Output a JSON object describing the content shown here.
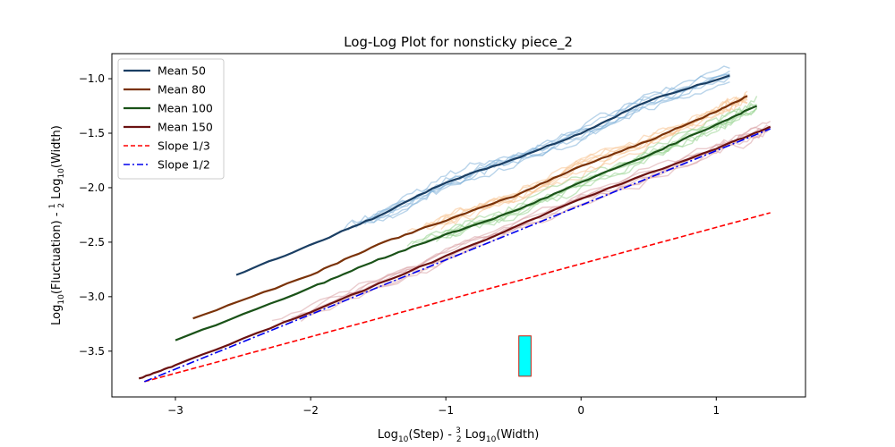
{
  "chart_data": {
    "type": "line",
    "title": "Log-Log Plot for nonsticky piece_2",
    "xlabel": {
      "prefix": "Log",
      "sub": "10",
      "mid": "(Step) - ",
      "frac_num": "3",
      "frac_den": "2",
      "suffix_prefix": " Log",
      "suffix_sub": "10",
      "suffix": "(Width)"
    },
    "ylabel": {
      "prefix": "Log",
      "sub": "10",
      "mid": "(Fluctuation) - ",
      "frac_num": "1",
      "frac_den": "2",
      "suffix_prefix": " Log",
      "suffix_sub": "10",
      "suffix": "(Width)"
    },
    "xlim": [
      -3.47,
      1.66
    ],
    "ylim": [
      -3.92,
      -0.77
    ],
    "xticks": [
      -3,
      -2,
      -1,
      0,
      1
    ],
    "xtick_labels": [
      "−3",
      "−2",
      "−1",
      "0",
      "1"
    ],
    "yticks": [
      -3.5,
      -3.0,
      -2.5,
      -2.0,
      -1.5,
      -1.0
    ],
    "ytick_labels": [
      "−3.5",
      "−3.0",
      "−2.5",
      "−2.0",
      "−1.5",
      "−1.0"
    ],
    "grid": false,
    "legend_position": "top-left",
    "series": [
      {
        "name": "Mean 50",
        "color": "#1a3e63",
        "band_color": "#7fb0d8",
        "style": "solid",
        "x": [
          -2.55,
          -1.95,
          -1.5,
          -1.0,
          -0.5,
          0.0,
          0.5,
          1.1
        ],
        "y": [
          -2.8,
          -2.5,
          -2.26,
          -1.95,
          -1.74,
          -1.5,
          -1.2,
          -0.97
        ]
      },
      {
        "name": "Mean 80",
        "color": "#7a3208",
        "band_color": "#f7c28f",
        "style": "solid",
        "x": [
          -2.87,
          -2.0,
          -1.5,
          -1.0,
          -0.5,
          0.0,
          0.5,
          1.0,
          1.23
        ],
        "y": [
          -3.2,
          -2.8,
          -2.52,
          -2.3,
          -2.08,
          -1.8,
          -1.57,
          -1.3,
          -1.16
        ]
      },
      {
        "name": "Mean 100",
        "color": "#1a5218",
        "band_color": "#97d490",
        "style": "solid",
        "x": [
          -3.0,
          -2.0,
          -1.5,
          -1.0,
          -0.5,
          0.0,
          0.5,
          1.0,
          1.3
        ],
        "y": [
          -3.4,
          -2.92,
          -2.66,
          -2.43,
          -2.22,
          -1.95,
          -1.7,
          -1.42,
          -1.25
        ]
      },
      {
        "name": "Mean 150",
        "color": "#6b1212",
        "band_color": "#d9a0a4",
        "style": "solid",
        "x": [
          -3.27,
          -3.0,
          -2.0,
          -1.0,
          0.0,
          1.0,
          1.4
        ],
        "y": [
          -3.75,
          -3.63,
          -3.14,
          -2.63,
          -2.1,
          -1.64,
          -1.44
        ]
      },
      {
        "name": "Slope 1/3",
        "color": "#ff0000",
        "style": "dashed",
        "x": [
          -3.23,
          1.4
        ],
        "y": [
          -3.78,
          -2.23
        ]
      },
      {
        "name": "Slope 1/2",
        "color": "#0000ee",
        "style": "dashdot",
        "x": [
          -3.23,
          1.4
        ],
        "y": [
          -3.78,
          -1.46
        ]
      }
    ],
    "annotation_box": {
      "x": [
        -0.46,
        -0.37
      ],
      "y": [
        -3.73,
        -3.36
      ],
      "color": "#00ffff",
      "edge": "#c02010"
    }
  }
}
